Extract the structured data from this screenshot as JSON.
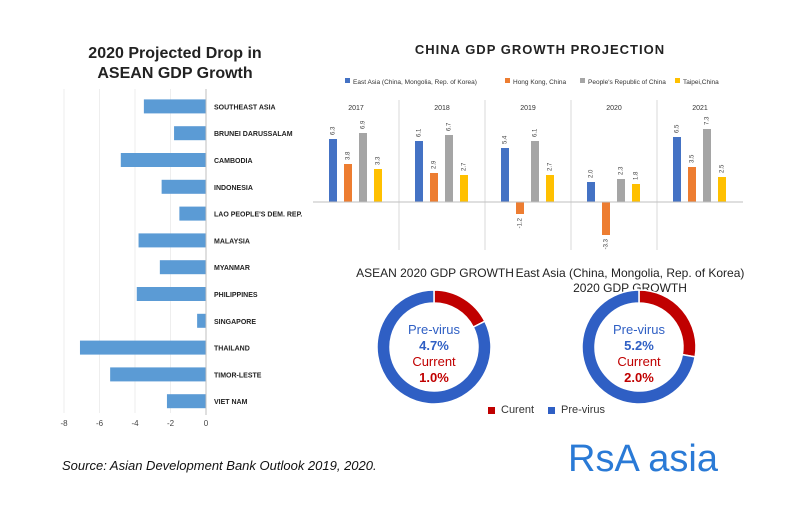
{
  "brand": "RsA asia",
  "source": "Source: Asian Development Bank Outlook 2019, 2020.",
  "chart_data": [
    {
      "type": "bar",
      "orientation": "horizontal",
      "title_line1": "2020 Projected Drop in",
      "title_line2": "ASEAN GDP Growth",
      "categories": [
        "SOUTHEAST ASIA",
        "BRUNEI DARUSSALAM",
        "CAMBODIA",
        "INDONESIA",
        "LAO PEOPLE'S DEM. REP.",
        "MALAYSIA",
        "MYANMAR",
        "PHILIPPINES",
        "SINGAPORE",
        "THAILAND",
        "TIMOR-LESTE",
        "VIET NAM"
      ],
      "values": [
        -3.5,
        -1.8,
        -4.8,
        -2.5,
        -1.5,
        -3.8,
        -2.6,
        -3.9,
        -0.5,
        -7.1,
        -5.4,
        -2.2
      ],
      "xlim": [
        -8,
        0
      ],
      "ticks": [
        "-8",
        "-6",
        "-4",
        "-2",
        "0"
      ],
      "color": "#5b9bd5"
    },
    {
      "type": "bar",
      "title": "CHINA GDP GROWTH PROJECTION",
      "categories": [
        "2017",
        "2018",
        "2019",
        "2020",
        "2021"
      ],
      "series": [
        {
          "name": "East Asia (China, Mongolia, Rep. of Korea)",
          "color": "#4472c4",
          "values": [
            6.3,
            6.1,
            5.4,
            2.0,
            6.5
          ],
          "labels": [
            "6.3",
            "6.1",
            "5.4",
            "2.0",
            "6.5"
          ]
        },
        {
          "name": "Hong Kong, China",
          "color": "#ed7d31",
          "values": [
            3.8,
            2.9,
            -1.2,
            -3.3,
            3.5
          ],
          "labels": [
            "3.8",
            "2.9",
            "-1.2",
            "-3.3",
            "3.5"
          ]
        },
        {
          "name": "People's Republic of China",
          "color": "#a5a5a5",
          "values": [
            6.9,
            6.7,
            6.1,
            2.3,
            7.3
          ],
          "labels": [
            "6.9",
            "6.7",
            "6.1",
            "2.3",
            "7.3"
          ]
        },
        {
          "name": "Taipei,China",
          "color": "#ffc000",
          "values": [
            3.3,
            2.7,
            2.7,
            1.8,
            2.5
          ],
          "labels": [
            "3.3",
            "2.7",
            "2.7",
            "1.8",
            "2.5"
          ]
        }
      ]
    },
    {
      "type": "pie",
      "style": "donut",
      "title": "ASEAN 2020 GDP GROWTH",
      "labels": [
        "Curent",
        "Pre-virus"
      ],
      "values": [
        1.0,
        4.7
      ],
      "colors": [
        "#c00000",
        "#2f5fc4"
      ],
      "center": {
        "line1": "Pre-virus",
        "line2": "4.7%",
        "line3": "Current",
        "line4": "1.0%"
      }
    },
    {
      "type": "pie",
      "style": "donut",
      "title_line1": "East Asia (China, Mongolia, Rep. of Korea)",
      "title_line2": "2020 GDP GROWTH",
      "labels": [
        "Curent",
        "Pre-virus"
      ],
      "values": [
        2.0,
        5.2
      ],
      "colors": [
        "#c00000",
        "#2f5fc4"
      ],
      "center": {
        "line1": "Pre-virus",
        "line2": "5.2%",
        "line3": "Current",
        "line4": "2.0%"
      }
    }
  ],
  "donut_legend": [
    {
      "label": "Curent",
      "color": "#c00000"
    },
    {
      "label": "Pre-virus",
      "color": "#2f5fc4"
    }
  ]
}
